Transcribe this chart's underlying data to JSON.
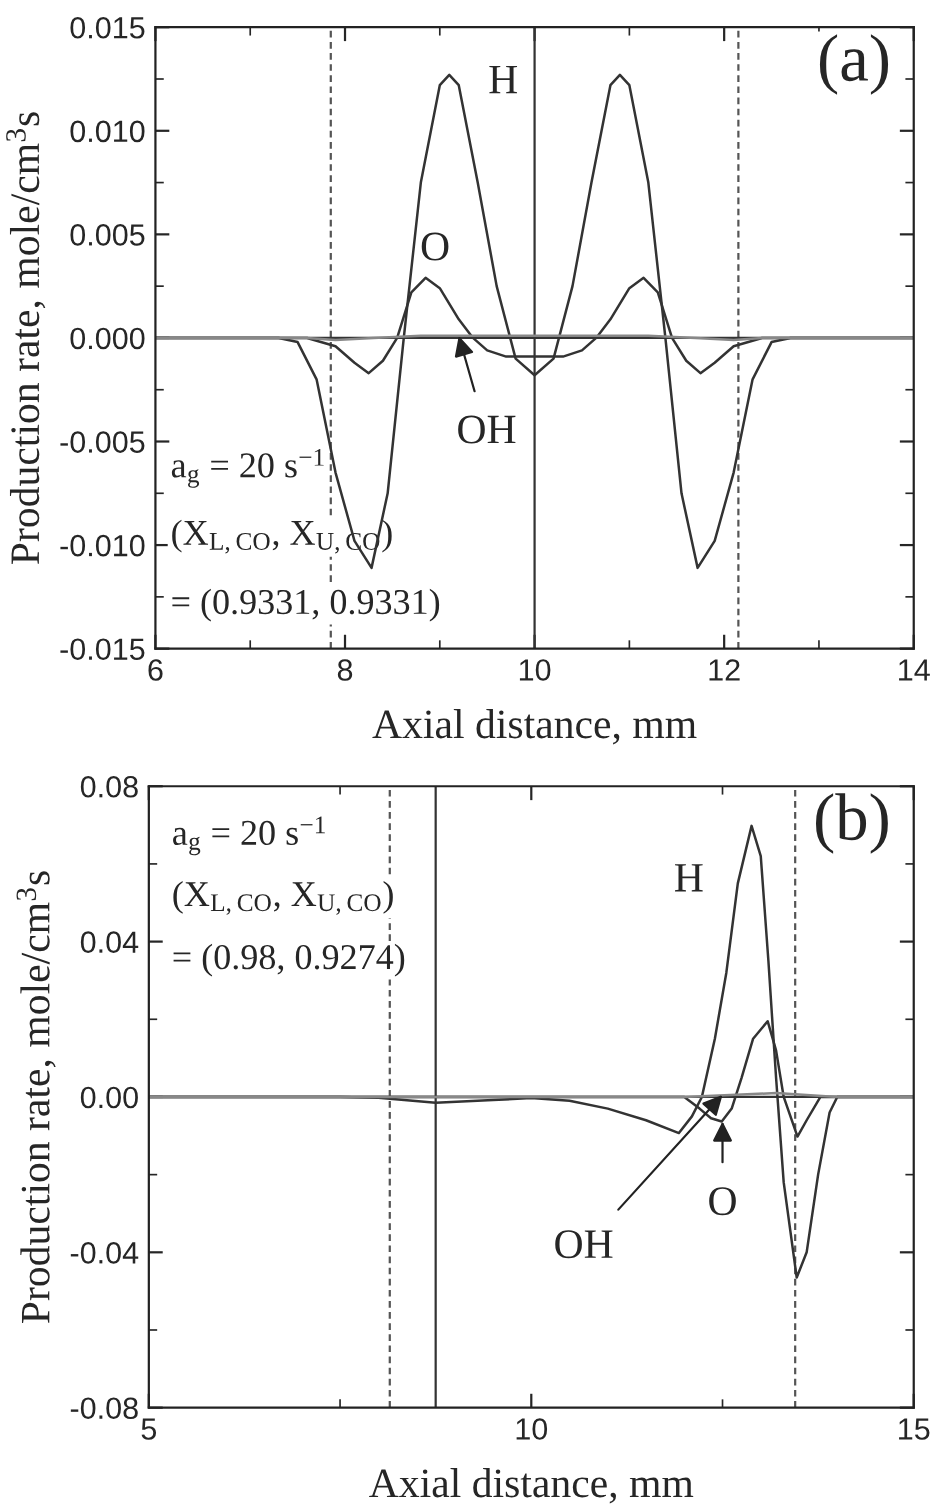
{
  "chart_data": [
    {
      "type": "line",
      "xlabel": "Axial distance, mm",
      "ylabel": "Production rate, mole/cm$^{3}$s",
      "xlim": [
        6,
        14
      ],
      "xticks": [
        6,
        8,
        10,
        12,
        14
      ],
      "ylim": [
        -0.015,
        0.015
      ],
      "yticks": [
        {
          "value": -0.015,
          "label": "-0.015"
        },
        {
          "value": -0.01,
          "label": "-0.010"
        },
        {
          "value": -0.005,
          "label": "-0.005"
        },
        {
          "value": 0,
          "label": "0.000"
        },
        {
          "value": 0.005,
          "label": "0.005"
        },
        {
          "value": 0.01,
          "label": "0.010"
        },
        {
          "value": 0.015,
          "label": "0.015"
        }
      ],
      "grid": false,
      "marker": "none",
      "line_style": "solid",
      "series": [
        {
          "color": "#333333",
          "x": [
            6,
            7.3,
            7.5,
            7.7,
            7.9,
            8.1,
            8.28,
            8.45,
            8.62,
            8.8,
            9.0,
            9.1,
            9.2,
            9.4,
            9.6,
            9.8,
            10.0,
            10.2,
            10.4,
            10.6,
            10.8,
            10.9,
            11.0,
            11.2,
            11.38,
            11.55,
            11.72,
            11.9,
            12.1,
            12.3,
            12.5,
            12.7,
            14
          ],
          "values": [
            0,
            0,
            -0.0002,
            -0.002,
            -0.0065,
            -0.0098,
            -0.0111,
            -0.0075,
            0,
            0.0075,
            0.0122,
            0.0127,
            0.0122,
            0.0075,
            0.0025,
            -0.001,
            -0.0018,
            -0.001,
            0.0025,
            0.0075,
            0.0122,
            0.0127,
            0.0122,
            0.0075,
            0,
            -0.0075,
            -0.0111,
            -0.0098,
            -0.0065,
            -0.002,
            -0.0002,
            0,
            0
          ]
        },
        {
          "color": "#333333",
          "x": [
            6,
            7.6,
            7.9,
            8.1,
            8.25,
            8.4,
            8.55,
            8.7,
            8.85,
            9.0,
            9.2,
            9.35,
            9.5,
            9.7,
            10.0,
            10.3,
            10.5,
            10.65,
            10.8,
            11.0,
            11.15,
            11.3,
            11.45,
            11.6,
            11.75,
            11.9,
            12.1,
            12.4,
            14
          ],
          "values": [
            0,
            0,
            -0.0004,
            -0.0012,
            -0.0017,
            -0.0011,
            0,
            0.0022,
            0.0029,
            0.0024,
            0.0009,
            0,
            -0.0006,
            -0.0009,
            -0.0009,
            -0.0009,
            -0.0006,
            0,
            0.0009,
            0.0024,
            0.0029,
            0.0022,
            0,
            -0.0011,
            -0.0017,
            -0.0012,
            -0.0004,
            0,
            0
          ]
        },
        {
          "color": "#888888",
          "x": [
            6,
            7.6,
            7.9,
            8.3,
            8.8,
            9.3,
            9.8,
            10.2,
            10.7,
            11.2,
            11.7,
            12.1,
            12.4,
            14
          ],
          "values": [
            0,
            0,
            -0.0001,
            0,
            0.0001,
            0.0001,
            0.0001,
            0.0001,
            0.0001,
            0.0001,
            0,
            -0.0001,
            0,
            0
          ]
        }
      ],
      "ref_lines": [
        {
          "axis": "x",
          "value": 7.85,
          "line_style": "dashed",
          "color": "#555555"
        },
        {
          "axis": "x",
          "value": 12.15,
          "line_style": "dashed",
          "color": "#555555"
        },
        {
          "axis": "x",
          "value": 10,
          "line_style": "solid",
          "color": "#333333"
        },
        {
          "axis": "y",
          "value": 0,
          "line_style": "solid",
          "color": "#333333"
        }
      ],
      "annotations": [
        "(a)",
        "a$_{g}$ = 20 s$^{−1}$",
        "(X$_{L,CO}$, X$_{U,CO}$)",
        "= (0.9331, 0.9331)",
        {
          "text": "H",
          "x": 9.1,
          "y": 0.0127
        },
        {
          "text": "O",
          "x": 8.85,
          "y": 0.0029
        },
        {
          "text": "OH",
          "x": 9.2,
          "y": 0.0001
        }
      ]
    },
    {
      "type": "line",
      "xlabel": "Axial distance, mm",
      "ylabel": "Production rate, mole/cm$^{3}$s",
      "xlim": [
        5,
        15
      ],
      "xticks": [
        5,
        10,
        15
      ],
      "ylim": [
        -0.08,
        0.08
      ],
      "yticks": [
        {
          "value": -0.08,
          "label": "-0.08"
        },
        {
          "value": -0.04,
          "label": "-0.04"
        },
        {
          "value": 0,
          "label": "0.00"
        },
        {
          "value": 0.04,
          "label": "0.04"
        },
        {
          "value": 0.08,
          "label": "0.08"
        }
      ],
      "grid": false,
      "marker": "none",
      "line_style": "solid",
      "series": [
        {
          "color": "#333333",
          "x": [
            5,
            7.5,
            8.0,
            8.75,
            9.5,
            10.0,
            10.5,
            11.0,
            11.5,
            11.93,
            12.1,
            12.23,
            12.4,
            12.55,
            12.7,
            12.88,
            13.0,
            13.1,
            13.2,
            13.3,
            13.47,
            13.6,
            13.75,
            13.9,
            14.0,
            15
          ],
          "values": [
            0,
            0,
            -0.0002,
            -0.0015,
            -0.0008,
            -0.0003,
            -0.001,
            -0.003,
            -0.006,
            -0.0093,
            -0.005,
            0,
            0.015,
            0.032,
            0.055,
            0.0698,
            0.062,
            0.035,
            0.005,
            -0.022,
            -0.0465,
            -0.04,
            -0.02,
            -0.004,
            0,
            0
          ]
        },
        {
          "color": "#333333",
          "x": [
            5,
            12.0,
            12.2,
            12.35,
            12.49,
            12.62,
            12.75,
            12.9,
            13.09,
            13.2,
            13.3,
            13.48,
            13.6,
            13.78,
            15
          ],
          "values": [
            0,
            0,
            -0.003,
            -0.0055,
            -0.0063,
            -0.003,
            0.005,
            0.015,
            0.0195,
            0.012,
            0,
            -0.0102,
            -0.006,
            0,
            0
          ]
        },
        {
          "color": "#888888",
          "x": [
            5,
            12.0,
            12.6,
            13.2,
            13.6,
            14.0,
            15
          ],
          "values": [
            0,
            0,
            0.0005,
            0.001,
            0.0005,
            0,
            0
          ]
        }
      ],
      "ref_lines": [
        {
          "axis": "x",
          "value": 8.15,
          "line_style": "dashed",
          "color": "#555555"
        },
        {
          "axis": "x",
          "value": 13.45,
          "line_style": "dashed",
          "color": "#555555"
        },
        {
          "axis": "x",
          "value": 8.75,
          "line_style": "solid",
          "color": "#333333"
        },
        {
          "axis": "y",
          "value": 0,
          "line_style": "solid",
          "color": "#333333"
        }
      ],
      "annotations": [
        "(b)",
        "a$_{g}$ = 20 s$^{−1}$",
        "(X$_{L,CO}$, X$_{U,CO}$)",
        "= (0.98, 0.9274)",
        {
          "text": "H",
          "x": 12.88,
          "y": 0.0698
        },
        {
          "text": "O",
          "x": 12.5,
          "y": -0.0063
        },
        {
          "text": "OH",
          "x": 12.5,
          "y": 0.0005
        }
      ]
    }
  ]
}
